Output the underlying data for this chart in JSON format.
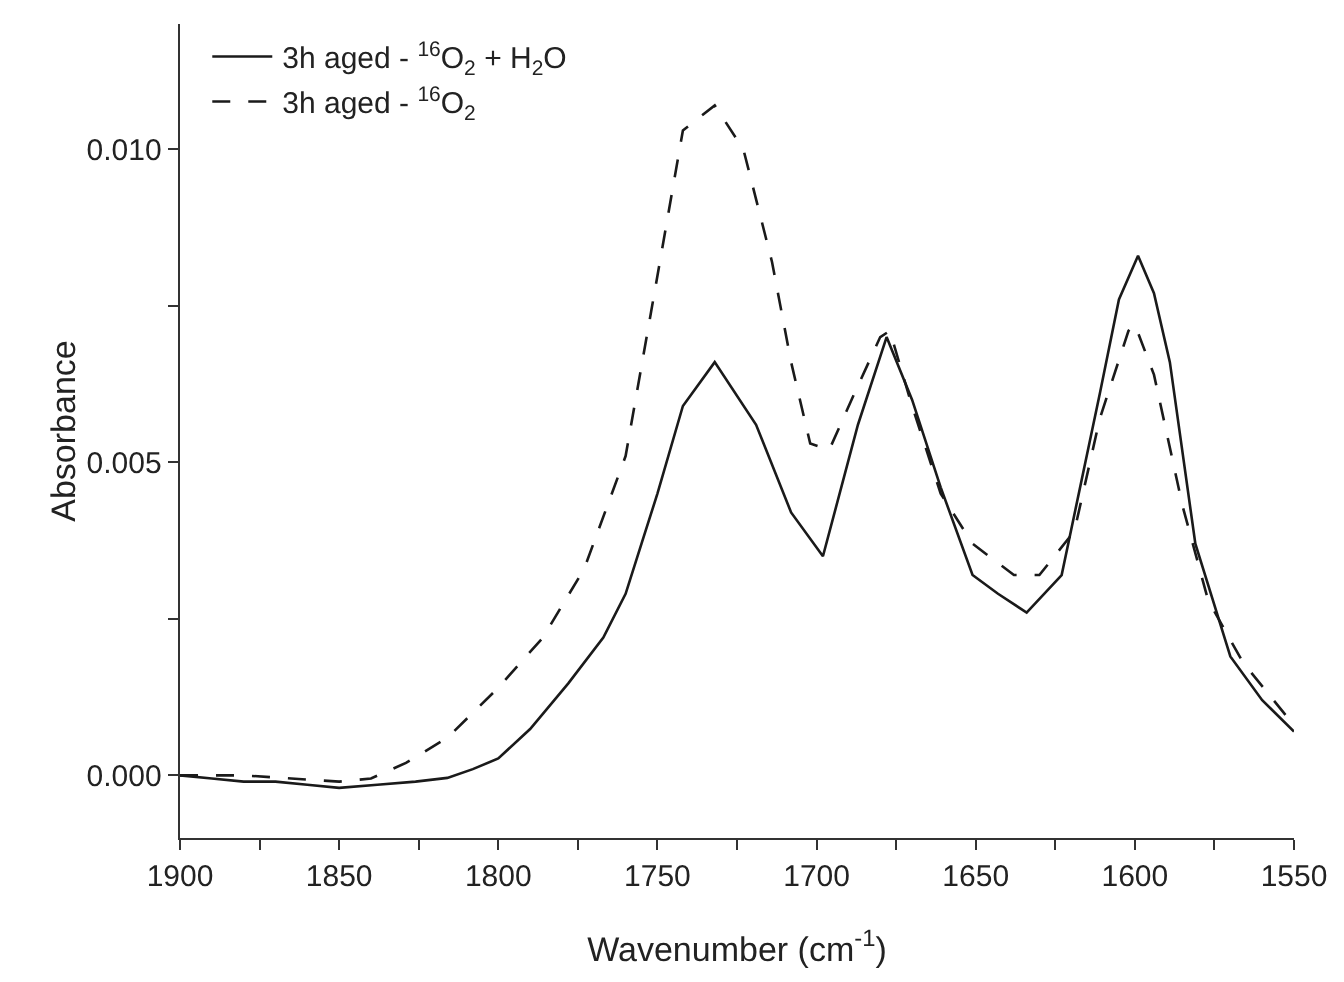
{
  "chart_data": {
    "type": "line",
    "xlabel": "Wavenumber (cm$^{-1}$)",
    "ylabel": "Absorbance",
    "xlim": [
      1900,
      1550
    ],
    "ylim": [
      -0.001,
      0.012
    ],
    "xticks": [
      1900,
      {
        "value": 1875,
        "label": null
      },
      1850,
      {
        "value": 1825,
        "label": null
      },
      1800,
      {
        "value": 1775,
        "label": null
      },
      1750,
      {
        "value": 1725,
        "label": null
      },
      1700,
      {
        "value": 1675,
        "label": null
      },
      1650,
      {
        "value": 1625,
        "label": null
      },
      1600,
      {
        "value": 1575,
        "label": null
      },
      1550
    ],
    "yticks": [
      {
        "value": 0,
        "label": "0.000"
      },
      {
        "value": 0.0025,
        "label": null
      },
      {
        "value": 0.005,
        "label": "0.005"
      },
      {
        "value": 0.0075,
        "label": null
      },
      {
        "value": 0.01,
        "label": "0.010"
      }
    ],
    "grid": false,
    "legend": "top left",
    "marker": "none",
    "series": [
      {
        "name": "3h aged - $^{16}$O$_{2}$ + H$_{2}$O",
        "color": "#1a1a1a",
        "line_style": "solid",
        "x": [
          1900,
          1890,
          1880,
          1870,
          1860,
          1850,
          1838,
          1826,
          1816,
          1808,
          1800,
          1790,
          1778,
          1767,
          1760,
          1755,
          1750,
          1742,
          1732,
          1719,
          1708,
          1698,
          1687,
          1678,
          1670,
          1661,
          1651,
          1643,
          1634,
          1623,
          1611,
          1605,
          1599,
          1594,
          1589,
          1581,
          1570,
          1560,
          1550
        ],
        "values": [
          0.0,
          -5e-05,
          -0.0001,
          -0.0001,
          -0.00015,
          -0.0002,
          -0.00015,
          -0.0001,
          -4e-05,
          0.0001,
          0.00027,
          0.00074,
          0.00147,
          0.0022,
          0.0029,
          0.0037,
          0.0045,
          0.0059,
          0.0066,
          0.0056,
          0.0042,
          0.0035,
          0.0056,
          0.007,
          0.006,
          0.0046,
          0.0032,
          0.0029,
          0.0026,
          0.0032,
          0.0061,
          0.0076,
          0.0083,
          0.0077,
          0.0066,
          0.0037,
          0.0019,
          0.0012,
          0.0007
        ]
      },
      {
        "name": "3h aged - $^{16}$O$_{2}$",
        "color": "#1a1a1a",
        "line_style": "dashed",
        "x": [
          1900,
          1880,
          1865,
          1850,
          1840,
          1829,
          1816,
          1800,
          1786,
          1773,
          1760,
          1752,
          1742,
          1732,
          1723,
          1714,
          1708,
          1702,
          1696,
          1689,
          1680,
          1677,
          1670,
          1661,
          1651,
          1638,
          1630,
          1619,
          1611,
          1602,
          1600,
          1594,
          1585,
          1577,
          1566,
          1550
        ],
        "values": [
          0.0,
          0.0,
          -5e-05,
          -0.0001,
          -5e-05,
          0.0002,
          0.0006,
          0.0014,
          0.0022,
          0.0033,
          0.0051,
          0.0074,
          0.0103,
          0.0107,
          0.01,
          0.0082,
          0.0066,
          0.0053,
          0.0052,
          0.006,
          0.007,
          0.0071,
          0.0059,
          0.0045,
          0.0037,
          0.0032,
          0.0032,
          0.0039,
          0.0057,
          0.0071,
          0.0072,
          0.0064,
          0.0043,
          0.0028,
          0.0018,
          0.0008
        ]
      }
    ]
  }
}
